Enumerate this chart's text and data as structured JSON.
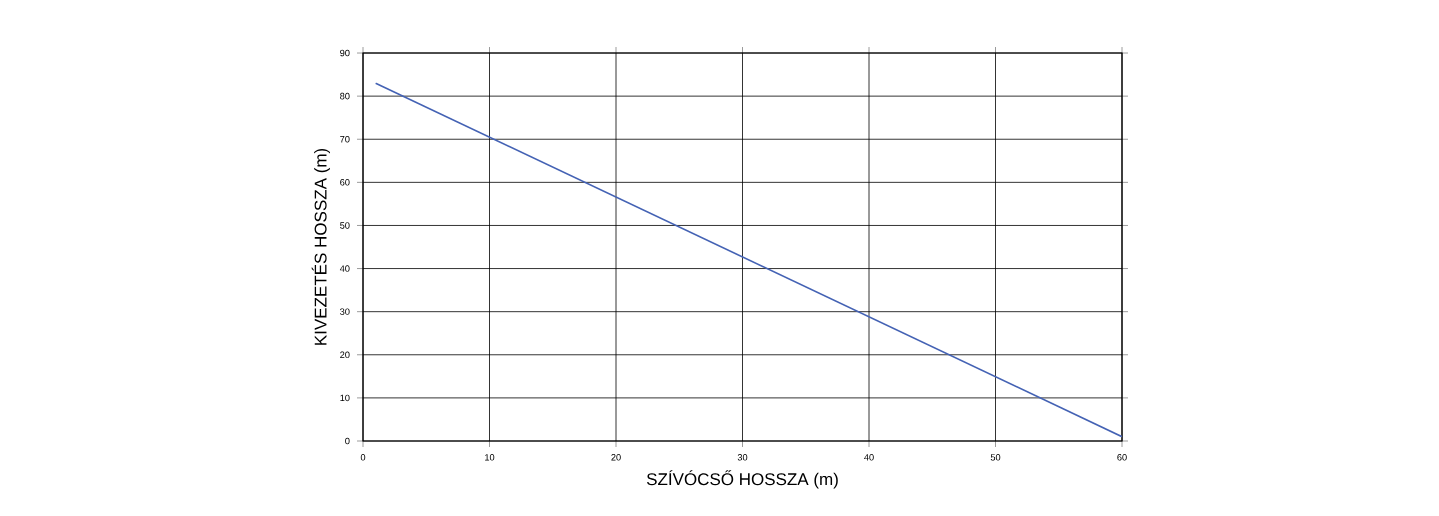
{
  "chart_data": {
    "type": "line",
    "xlabel": "SZÍVÓCSŐ HOSSZA (m)",
    "ylabel": "KIVEZETÉS HOSSZA (m)",
    "x": [
      1,
      60
    ],
    "series": [
      {
        "color": "#4462b4",
        "values": [
          83,
          1
        ]
      }
    ],
    "xlim": [
      0,
      60
    ],
    "ylim": [
      0,
      90
    ],
    "xticks": [
      0,
      10,
      20,
      30,
      40,
      50,
      60
    ],
    "yticks": [
      0,
      10,
      20,
      30,
      40,
      50,
      60,
      70,
      80,
      90
    ],
    "grid": true
  }
}
